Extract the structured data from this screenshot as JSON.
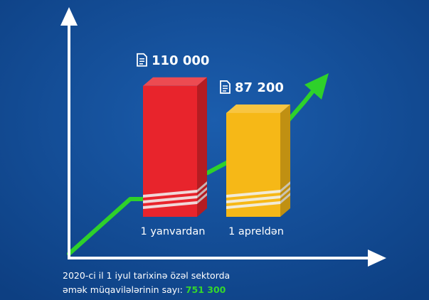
{
  "chart_data": {
    "type": "bar",
    "categories": [
      "1 yanvardan",
      "1 apreldən"
    ],
    "values": [
      110000,
      87200
    ],
    "value_labels": [
      "110 000",
      "87 200"
    ],
    "ylim": [
      0,
      120000
    ],
    "grid": false,
    "legend": "none",
    "series_colors": [
      "#e8242c",
      "#f6b817"
    ]
  },
  "caption": {
    "line1": "2020-ci il 1 iyul tarixinə özəl sektorda",
    "line2_prefix": "əmək müqavilələrinin sayı: ",
    "line2_value": "751 300"
  },
  "colors": {
    "background": "#114c97",
    "axis": "#ffffff",
    "trend_line": "#2ed12a",
    "highlight": "#35d62c",
    "stripe": "#f1f1f1"
  },
  "icons": {
    "value_label_icon": "document-icon"
  }
}
